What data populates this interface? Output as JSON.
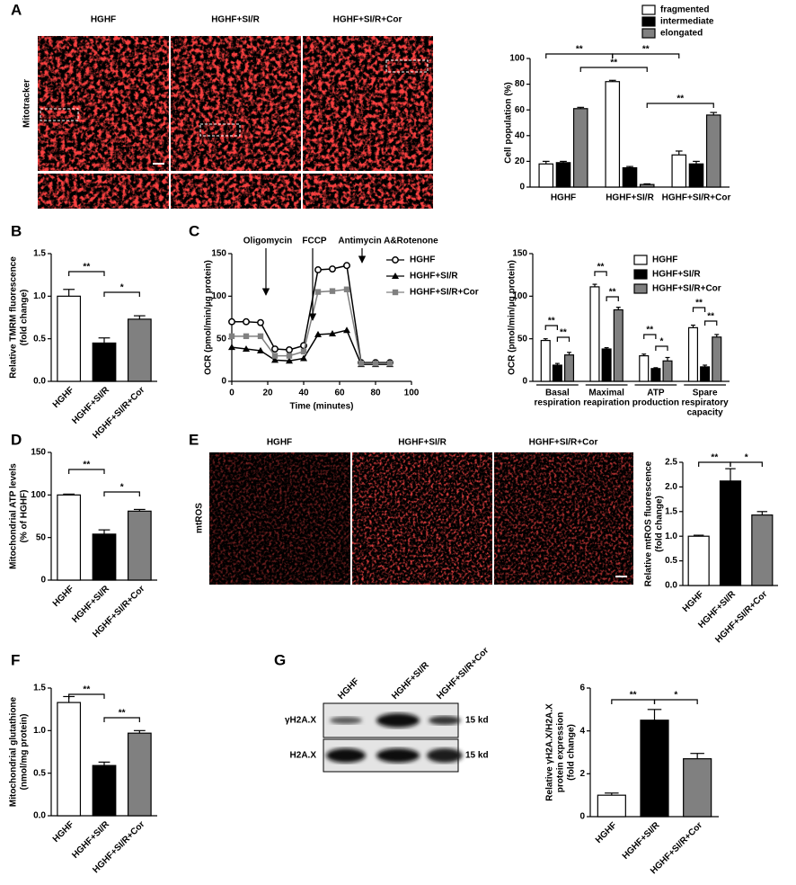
{
  "figure": {
    "panel_labels": [
      "A",
      "B",
      "C",
      "D",
      "E",
      "F",
      "G"
    ],
    "mitotracker": {
      "columns": [
        "HGHF",
        "HGHF+SI/R",
        "HGHF+SI/R+Cor"
      ],
      "row_label": "Mitotracker"
    },
    "mtros": {
      "columns": [
        "HGHF",
        "HGHF+SI/R",
        "HGHF+SI/R+Cor"
      ],
      "row_label": "mtROS"
    },
    "blot": {
      "lanes": [
        "HGHF",
        "HGHF+SI/R",
        "HGHF+SI/R+Cor"
      ],
      "bands": [
        "γH2A.X",
        "H2A.X"
      ],
      "sizes": [
        "15 kd",
        "15 kd"
      ]
    }
  },
  "chart_data": [
    {
      "type": "bar",
      "categories": [
        "HGHF",
        "HGHF+SI/R",
        "HGHF+SI/R+Cor"
      ],
      "series": [
        {
          "name": "fragmented",
          "color": "#ffffff",
          "values": [
            18,
            82,
            25
          ],
          "errors": [
            2,
            1,
            3
          ]
        },
        {
          "name": "intermediate",
          "color": "#000000",
          "values": [
            19,
            15,
            18
          ],
          "errors": [
            1,
            1,
            2
          ]
        },
        {
          "name": "elongated",
          "color": "#808080",
          "values": [
            61,
            2,
            56
          ],
          "errors": [
            1,
            0.5,
            2
          ]
        }
      ],
      "ylabel": [
        "Cell population (%)"
      ],
      "ylim": [
        0,
        100
      ],
      "yticks": [
        0,
        20,
        40,
        60,
        80,
        100
      ],
      "significance": [
        "**",
        "**",
        "**",
        "**"
      ],
      "legend": "top-right"
    },
    {
      "type": "bar",
      "categories": [
        "HGHF",
        "HGHF+SI/R",
        "HGHF+SI/R+Cor"
      ],
      "values": [
        1.0,
        0.45,
        0.73
      ],
      "errors": [
        0.08,
        0.06,
        0.04
      ],
      "colors": [
        "#ffffff",
        "#000000",
        "#808080"
      ],
      "ylabel": [
        "Relative TMRM fluorescence",
        "(fold change)"
      ],
      "ylim": [
        0,
        1.5
      ],
      "yticks": [
        {
          "value": 0,
          "label": "0.0"
        },
        0.5,
        {
          "value": 1,
          "label": "1.0"
        },
        1.5
      ],
      "significance": [
        "**",
        "*"
      ]
    },
    {
      "type": "line",
      "x": [
        0,
        8,
        16,
        24,
        32,
        40,
        48,
        56,
        64,
        72,
        80,
        88
      ],
      "series": [
        {
          "name": "HGHF",
          "color": "#000000",
          "marker": "circle",
          "values": [
            70,
            70,
            69,
            38,
            37,
            42,
            131,
            132,
            136,
            22,
            22,
            22
          ]
        },
        {
          "name": "HGHF+SI/R",
          "color": "#000000",
          "marker": "triangle",
          "values": [
            40,
            38,
            36,
            25,
            24,
            27,
            55,
            56,
            60,
            20,
            20,
            20
          ]
        },
        {
          "name": "HGHF+SI/R+Cor",
          "color": "#808080",
          "marker": "square",
          "values": [
            53,
            53,
            53,
            30,
            30,
            35,
            105,
            106,
            108,
            21,
            21,
            21
          ]
        }
      ],
      "xlabel": "Time (minutes)",
      "ylabel": [
        "OCR (pmol/min/μg protein)"
      ],
      "xlim": [
        0,
        100
      ],
      "xticks": [
        0,
        20,
        40,
        60,
        80,
        100
      ],
      "ylim": [
        0,
        150
      ],
      "yticks": [
        0,
        50,
        100,
        150
      ],
      "annotations": [
        "Oligomycin",
        "FCCP",
        "Antimycin A&Rotenone"
      ],
      "legend": "top-right"
    },
    {
      "type": "bar",
      "categories": [
        [
          "Basal",
          "respiration"
        ],
        [
          "Maximal",
          "reapiration"
        ],
        [
          "ATP",
          "production"
        ],
        [
          "Spare",
          "respiratory",
          "capacity"
        ]
      ],
      "series": [
        {
          "name": "HGHF",
          "color": "#ffffff",
          "values": [
            48,
            111,
            30,
            63
          ],
          "errors": [
            2,
            3,
            2,
            3
          ]
        },
        {
          "name": "HGHF+SI/R",
          "color": "#000000",
          "values": [
            19,
            38,
            15,
            17
          ],
          "errors": [
            2,
            1.5,
            1,
            2
          ]
        },
        {
          "name": "HGHF+SI/R+Cor",
          "color": "#808080",
          "values": [
            31,
            84,
            24,
            52
          ],
          "errors": [
            3,
            3,
            4,
            3
          ]
        }
      ],
      "ylabel": [
        "OCR (pmol/min/μg protein)"
      ],
      "ylim": [
        0,
        150
      ],
      "yticks": [
        0,
        50,
        100,
        150
      ],
      "significance": [
        "**",
        "**",
        "**",
        "**",
        "**",
        "*",
        "**",
        "**"
      ],
      "legend": "top-right"
    },
    {
      "type": "bar",
      "categories": [
        "HGHF",
        "HGHF+SI/R",
        "HGHF+SI/R+Cor"
      ],
      "values": [
        100,
        54,
        81
      ],
      "errors": [
        1,
        5,
        2
      ],
      "colors": [
        "#ffffff",
        "#000000",
        "#808080"
      ],
      "ylabel": [
        "Mitochondrial ATP levels",
        "(% of HGHF)"
      ],
      "ylim": [
        0,
        150
      ],
      "yticks": [
        0,
        50,
        100,
        150
      ],
      "significance": [
        "**",
        "*"
      ]
    },
    {
      "type": "bar",
      "categories": [
        "HGHF",
        "HGHF+SI/R",
        "HGHF+SI/R+Cor"
      ],
      "values": [
        1.0,
        2.12,
        1.43
      ],
      "errors": [
        0.02,
        0.25,
        0.07
      ],
      "colors": [
        "#ffffff",
        "#000000",
        "#808080"
      ],
      "ylabel": [
        "Relative mtROS fluorescence",
        "(fold change)"
      ],
      "ylim": [
        0,
        2.5
      ],
      "yticks": [
        {
          "value": 0,
          "label": "0.0"
        },
        0.5,
        {
          "value": 1,
          "label": "1.0"
        },
        1.5,
        {
          "value": 2,
          "label": "2.0"
        },
        2.5
      ],
      "significance": [
        "**",
        "*"
      ]
    },
    {
      "type": "bar",
      "categories": [
        "HGHF",
        "HGHF+SI/R",
        "HGHF+SI/R+Cor"
      ],
      "values": [
        1.33,
        0.59,
        0.97
      ],
      "errors": [
        0.07,
        0.04,
        0.03
      ],
      "colors": [
        "#ffffff",
        "#000000",
        "#808080"
      ],
      "ylabel": [
        "Mitochondrial glutathione",
        "(nmol/mg protein)"
      ],
      "ylim": [
        0,
        1.5
      ],
      "yticks": [
        {
          "value": 0,
          "label": "0.0"
        },
        0.5,
        {
          "value": 1,
          "label": "1.0"
        },
        1.5
      ],
      "significance": [
        "**",
        "**"
      ]
    },
    {
      "type": "bar",
      "categories": [
        "HGHF",
        "HGHF+SI/R",
        "HGHF+SI/R+Cor"
      ],
      "values": [
        1.0,
        4.5,
        2.7
      ],
      "errors": [
        0.1,
        0.5,
        0.25
      ],
      "colors": [
        "#ffffff",
        "#000000",
        "#808080"
      ],
      "ylabel": [
        "Relative γH2A.X/H2A.X",
        "protein expression",
        "(fold change)"
      ],
      "ylim": [
        0,
        6
      ],
      "yticks": [
        0,
        2,
        4,
        6
      ],
      "significance": [
        "**",
        "*"
      ]
    }
  ]
}
